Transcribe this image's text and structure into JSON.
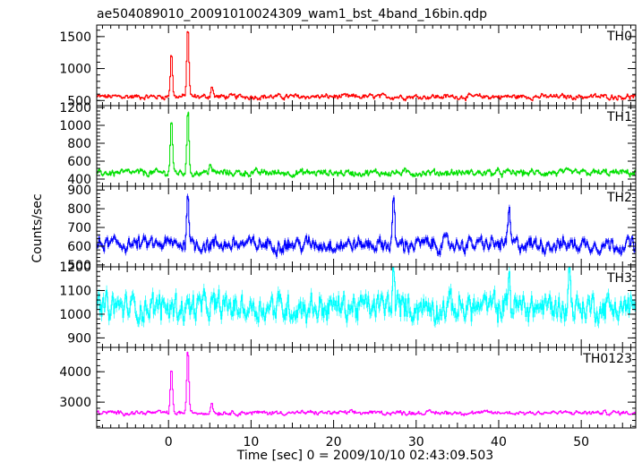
{
  "chart_data": {
    "type": "line",
    "title": "ae504089010_20091010024309_wam1_bst_4band_16bin.qdp",
    "xlabel": "Time [sec] 0 = 2009/10/10 02:43:09.503",
    "ylabel": "Counts/sec",
    "xlim": [
      -8.7,
      56.6
    ],
    "xticks": [
      0,
      10,
      20,
      30,
      40,
      50
    ],
    "grid": false,
    "panels": [
      {
        "name": "TH0",
        "color": "#ff0000",
        "ylim": [
          420,
          1680
        ],
        "yticks": [
          500,
          1000,
          1500
        ],
        "baseline": 560,
        "noise": 40,
        "peaks": [
          [
            0.3,
            1250
          ],
          [
            2.3,
            1650
          ],
          [
            5.2,
            730
          ]
        ]
      },
      {
        "name": "TH1",
        "color": "#00e000",
        "ylim": [
          320,
          1220
        ],
        "yticks": [
          400,
          600,
          800,
          1000,
          1200
        ],
        "baseline": 470,
        "noise": 38,
        "peaks": [
          [
            0.3,
            1080
          ],
          [
            2.3,
            1150
          ],
          [
            5.0,
            580
          ]
        ]
      },
      {
        "name": "TH2",
        "color": "#0000ff",
        "ylim": [
          490,
          920
        ],
        "yticks": [
          500,
          600,
          700,
          800,
          900
        ],
        "baseline": 610,
        "noise": 40,
        "peaks": [
          [
            2.3,
            910
          ],
          [
            27.2,
            850
          ],
          [
            41.2,
            800
          ]
        ]
      },
      {
        "name": "TH3",
        "color": "#00ffff",
        "ylim": [
          860,
          1200
        ],
        "yticks": [
          900,
          1000,
          1100,
          1200
        ],
        "baseline": 1030,
        "noise": 60,
        "peaks": [
          [
            27.2,
            1190
          ],
          [
            41.2,
            1180
          ],
          [
            48.5,
            1190
          ]
        ]
      },
      {
        "name": "TH0123",
        "color": "#ff00ff",
        "ylim": [
          2150,
          4800
        ],
        "yticks": [
          3000,
          4000
        ],
        "baseline": 2650,
        "noise": 70,
        "peaks": [
          [
            0.3,
            4100
          ],
          [
            2.3,
            4700
          ],
          [
            5.2,
            3000
          ]
        ]
      }
    ]
  }
}
